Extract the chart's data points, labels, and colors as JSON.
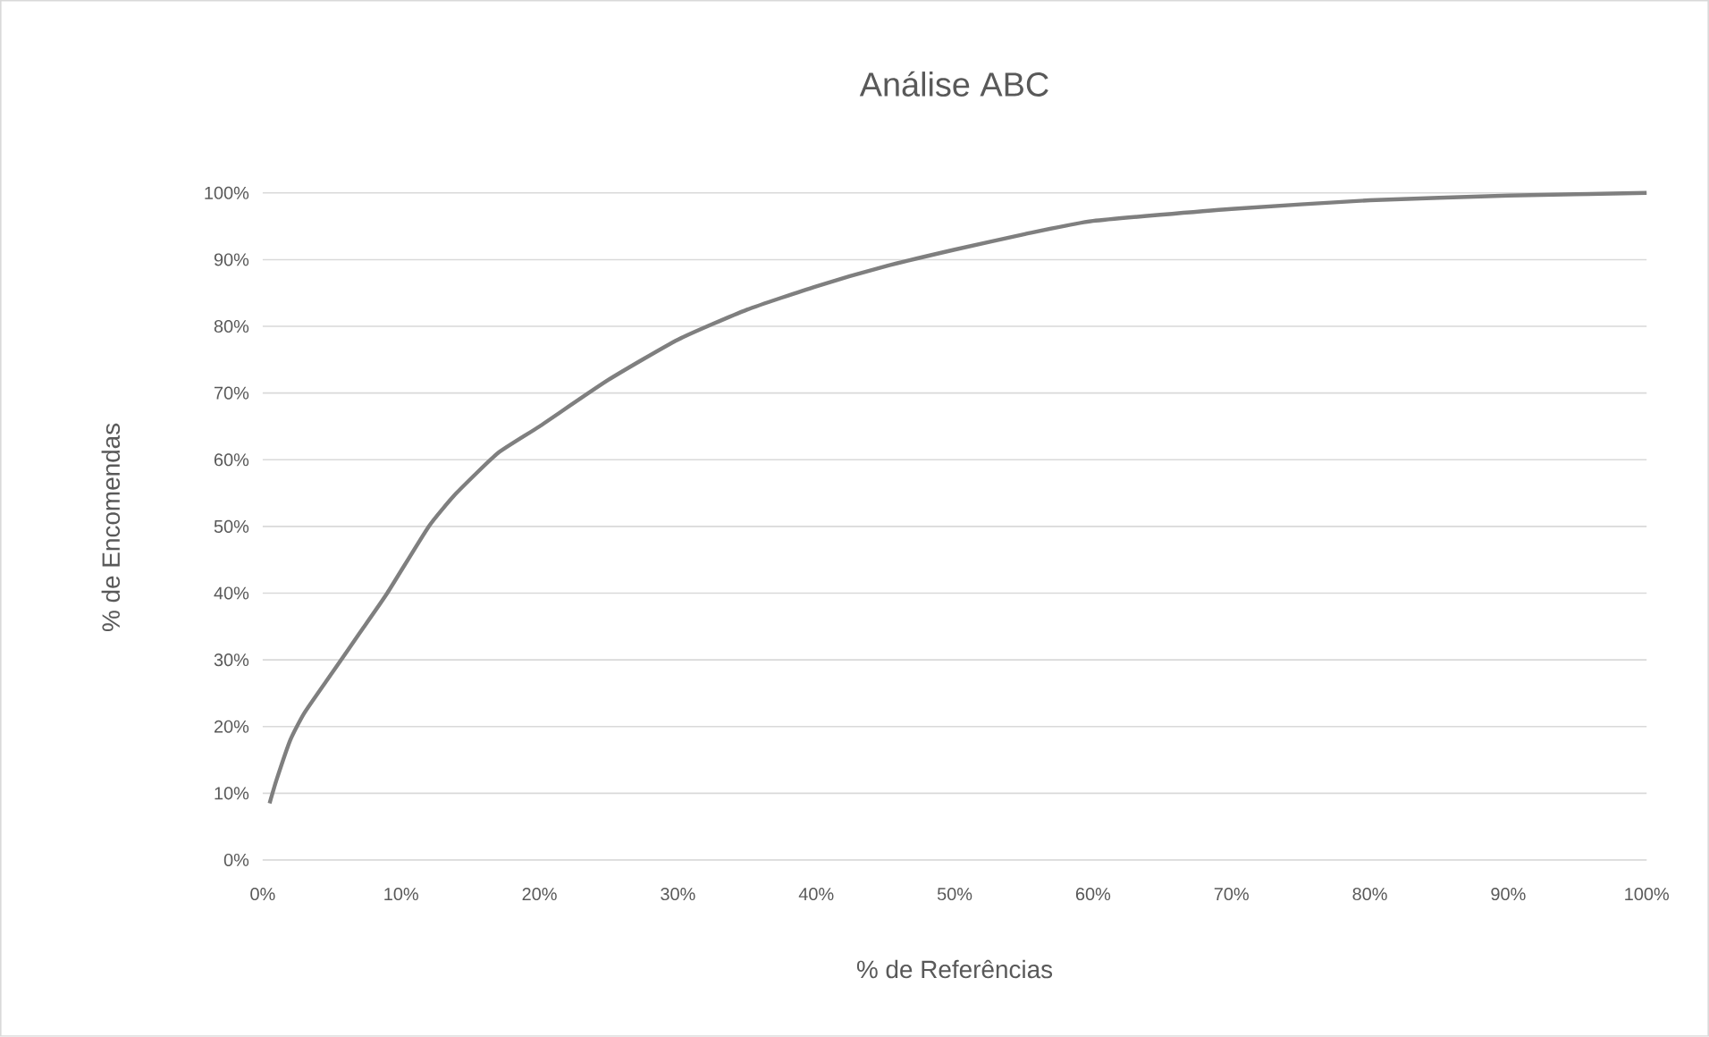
{
  "chart_data": {
    "type": "line",
    "title": "Análise ABC",
    "xlabel": "% de Referências",
    "ylabel": "% de Encomendas",
    "x": [
      0.5,
      1,
      2,
      3,
      5,
      7,
      9,
      12,
      14,
      17,
      20,
      25,
      30,
      35,
      40,
      45,
      50,
      55,
      60,
      70,
      80,
      90,
      100
    ],
    "series": [
      {
        "color": "#7f7f7f",
        "values": [
          8.5,
          12,
          18,
          22,
          28,
          34,
          40,
          50,
          55,
          61,
          65,
          72,
          78,
          82.5,
          86,
          89,
          91.5,
          93.8,
          95.8,
          97.6,
          98.9,
          99.6,
          100
        ]
      }
    ],
    "xlim": [
      0,
      100
    ],
    "ylim": [
      0,
      100
    ],
    "xticks": [
      {
        "value": 0,
        "label": "0%"
      },
      {
        "value": 10,
        "label": "10%"
      },
      {
        "value": 20,
        "label": "20%"
      },
      {
        "value": 30,
        "label": "30%"
      },
      {
        "value": 40,
        "label": "40%"
      },
      {
        "value": 50,
        "label": "50%"
      },
      {
        "value": 60,
        "label": "60%"
      },
      {
        "value": 70,
        "label": "70%"
      },
      {
        "value": 80,
        "label": "80%"
      },
      {
        "value": 90,
        "label": "90%"
      },
      {
        "value": 100,
        "label": "100%"
      }
    ],
    "yticks": [
      {
        "value": 0,
        "label": "0%"
      },
      {
        "value": 10,
        "label": "10%"
      },
      {
        "value": 20,
        "label": "20%"
      },
      {
        "value": 30,
        "label": "30%"
      },
      {
        "value": 40,
        "label": "40%"
      },
      {
        "value": 50,
        "label": "50%"
      },
      {
        "value": 60,
        "label": "60%"
      },
      {
        "value": 70,
        "label": "70%"
      },
      {
        "value": 80,
        "label": "80%"
      },
      {
        "value": 90,
        "label": "90%"
      },
      {
        "value": 100,
        "label": "100%"
      }
    ],
    "grid": "y",
    "marker": "none",
    "line_style": "solid"
  }
}
